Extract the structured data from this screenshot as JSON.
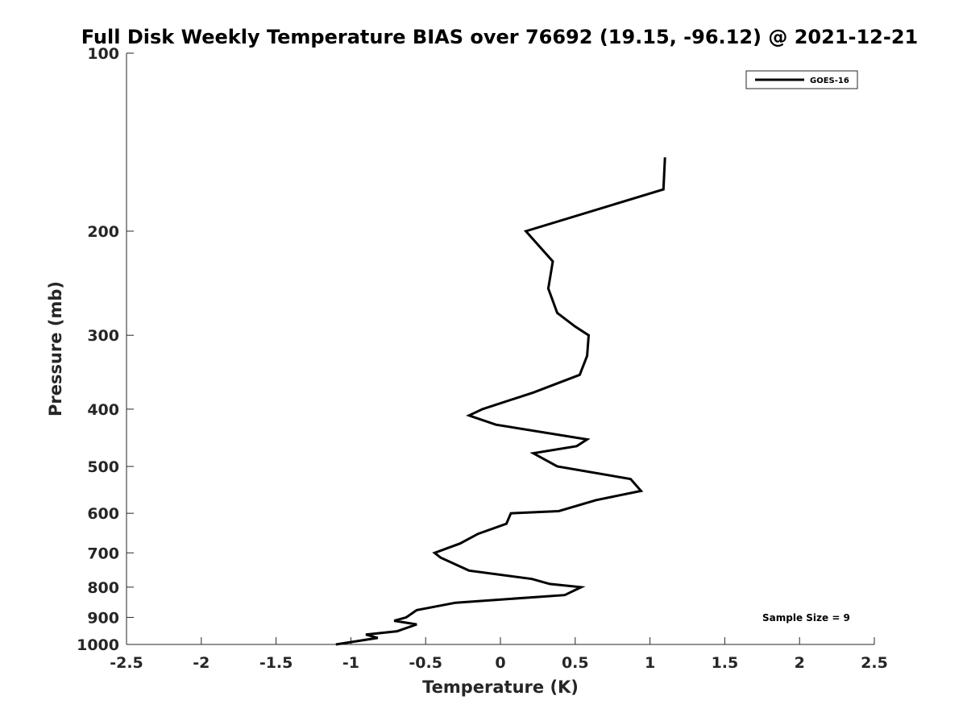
{
  "chart_data": {
    "type": "line",
    "title": "Full Disk Weekly Temperature BIAS over 76692 (19.15, -96.12) @ 2021-12-21",
    "xlabel": "Temperature (K)",
    "ylabel": "Pressure (mb)",
    "xlim": [
      -2.5,
      2.5
    ],
    "ylim": [
      1000,
      100
    ],
    "yscale": "log",
    "x_ticks": [
      -2.5,
      -2,
      -1.5,
      -1,
      -0.5,
      0,
      0.5,
      1,
      1.5,
      2,
      2.5
    ],
    "x_tick_labels": [
      "-2.5",
      "-2",
      "-1.5",
      "-1",
      "-0.5",
      "0",
      "0.5",
      "1",
      "1.5",
      "2",
      "2.5"
    ],
    "y_ticks": [
      100,
      200,
      300,
      400,
      500,
      600,
      700,
      800,
      900,
      1000
    ],
    "y_tick_labels": [
      "100",
      "200",
      "300",
      "400",
      "500",
      "600",
      "700",
      "800",
      "900",
      "1000"
    ],
    "grid": false,
    "legend_position": "top-right",
    "annotation": "Sample Size = 9",
    "series": [
      {
        "name": "GOES-16",
        "color": "#000000",
        "points": [
          {
            "t": 1.1,
            "p": 150
          },
          {
            "t": 1.09,
            "p": 170
          },
          {
            "t": 0.17,
            "p": 200
          },
          {
            "t": 0.35,
            "p": 225
          },
          {
            "t": 0.32,
            "p": 250
          },
          {
            "t": 0.38,
            "p": 275
          },
          {
            "t": 0.5,
            "p": 290
          },
          {
            "t": 0.59,
            "p": 300
          },
          {
            "t": 0.58,
            "p": 325
          },
          {
            "t": 0.53,
            "p": 350
          },
          {
            "t": 0.22,
            "p": 375
          },
          {
            "t": -0.12,
            "p": 400
          },
          {
            "t": -0.21,
            "p": 410
          },
          {
            "t": -0.03,
            "p": 425
          },
          {
            "t": 0.58,
            "p": 450
          },
          {
            "t": 0.51,
            "p": 462
          },
          {
            "t": 0.22,
            "p": 475
          },
          {
            "t": 0.38,
            "p": 500
          },
          {
            "t": 0.87,
            "p": 525
          },
          {
            "t": 0.94,
            "p": 550
          },
          {
            "t": 0.64,
            "p": 570
          },
          {
            "t": 0.39,
            "p": 595
          },
          {
            "t": 0.07,
            "p": 600
          },
          {
            "t": 0.04,
            "p": 625
          },
          {
            "t": -0.15,
            "p": 650
          },
          {
            "t": -0.27,
            "p": 675
          },
          {
            "t": -0.44,
            "p": 700
          },
          {
            "t": -0.4,
            "p": 713
          },
          {
            "t": -0.21,
            "p": 750
          },
          {
            "t": 0.21,
            "p": 775
          },
          {
            "t": 0.33,
            "p": 790
          },
          {
            "t": 0.54,
            "p": 800
          },
          {
            "t": 0.43,
            "p": 825
          },
          {
            "t": -0.3,
            "p": 850
          },
          {
            "t": -0.56,
            "p": 875
          },
          {
            "t": -0.63,
            "p": 900
          },
          {
            "t": -0.71,
            "p": 912
          },
          {
            "t": -0.56,
            "p": 925
          },
          {
            "t": -0.69,
            "p": 950
          },
          {
            "t": -0.9,
            "p": 962
          },
          {
            "t": -0.82,
            "p": 975
          },
          {
            "t": -1.1,
            "p": 1000
          }
        ]
      }
    ]
  }
}
